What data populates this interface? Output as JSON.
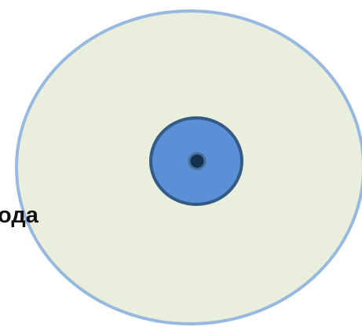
{
  "diagram": {
    "label": "ода",
    "colors": {
      "outer_fill": "#eaeedd",
      "outer_stroke": "#97b9e0",
      "middle_fill": "#5b8fd6",
      "middle_stroke": "#345a86",
      "core_fill": "#14304f",
      "core_ring": "#4a6f9a",
      "label_color": "#111111"
    }
  }
}
